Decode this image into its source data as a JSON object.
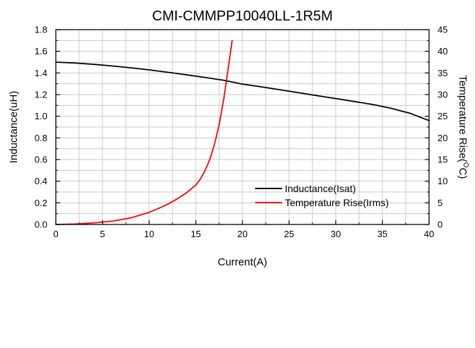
{
  "chart_data": {
    "type": "line",
    "title": "CMI-CMMPP10040LL-1R5M",
    "xlabel": "Current(A)",
    "ylabel": "Inductance(uH)",
    "y2label": "Temperature Rise(",
    "y2label_unit": "C)",
    "y2label_degree": "O",
    "xlim": [
      0,
      40
    ],
    "ylim": [
      0,
      1.8
    ],
    "y2lim": [
      0,
      45
    ],
    "xticks": [
      "0",
      "5",
      "10",
      "15",
      "20",
      "25",
      "30",
      "35",
      "40"
    ],
    "yticks": [
      "0.0",
      "0.2",
      "0.4",
      "0.6",
      "0.8",
      "1.0",
      "1.2",
      "1.4",
      "1.6",
      "1.8"
    ],
    "y2ticks": [
      "0",
      "5",
      "10",
      "15",
      "20",
      "25",
      "30",
      "35",
      "40",
      "45"
    ],
    "grid": true,
    "legend_position": "bottom-right",
    "series": [
      {
        "name": "Inductance(Isat)",
        "axis": "left",
        "color": "#000000",
        "x": [
          0,
          2,
          4,
          6,
          8,
          10,
          12,
          14,
          16,
          18,
          20,
          22,
          24,
          26,
          28,
          30,
          32,
          34,
          36,
          38,
          40
        ],
        "y": [
          1.5,
          1.492,
          1.48,
          1.465,
          1.448,
          1.428,
          1.406,
          1.383,
          1.358,
          1.332,
          1.297,
          1.272,
          1.245,
          1.218,
          1.19,
          1.163,
          1.136,
          1.108,
          1.072,
          1.026,
          0.96
        ]
      },
      {
        "name": "Temperature Rise(Irms)",
        "axis": "right",
        "color": "#ff0000",
        "x": [
          0,
          2,
          4,
          6,
          8,
          10,
          11,
          12,
          13,
          14,
          15,
          15.5,
          16,
          16.5,
          17,
          17.5,
          18,
          18.3,
          18.6,
          18.9
        ],
        "y": [
          0,
          0.1,
          0.35,
          0.75,
          1.5,
          2.8,
          3.7,
          4.7,
          5.9,
          7.3,
          9.1,
          10.5,
          12.5,
          15.0,
          18.5,
          23.0,
          29.0,
          33.5,
          38.0,
          42.5
        ]
      }
    ]
  }
}
